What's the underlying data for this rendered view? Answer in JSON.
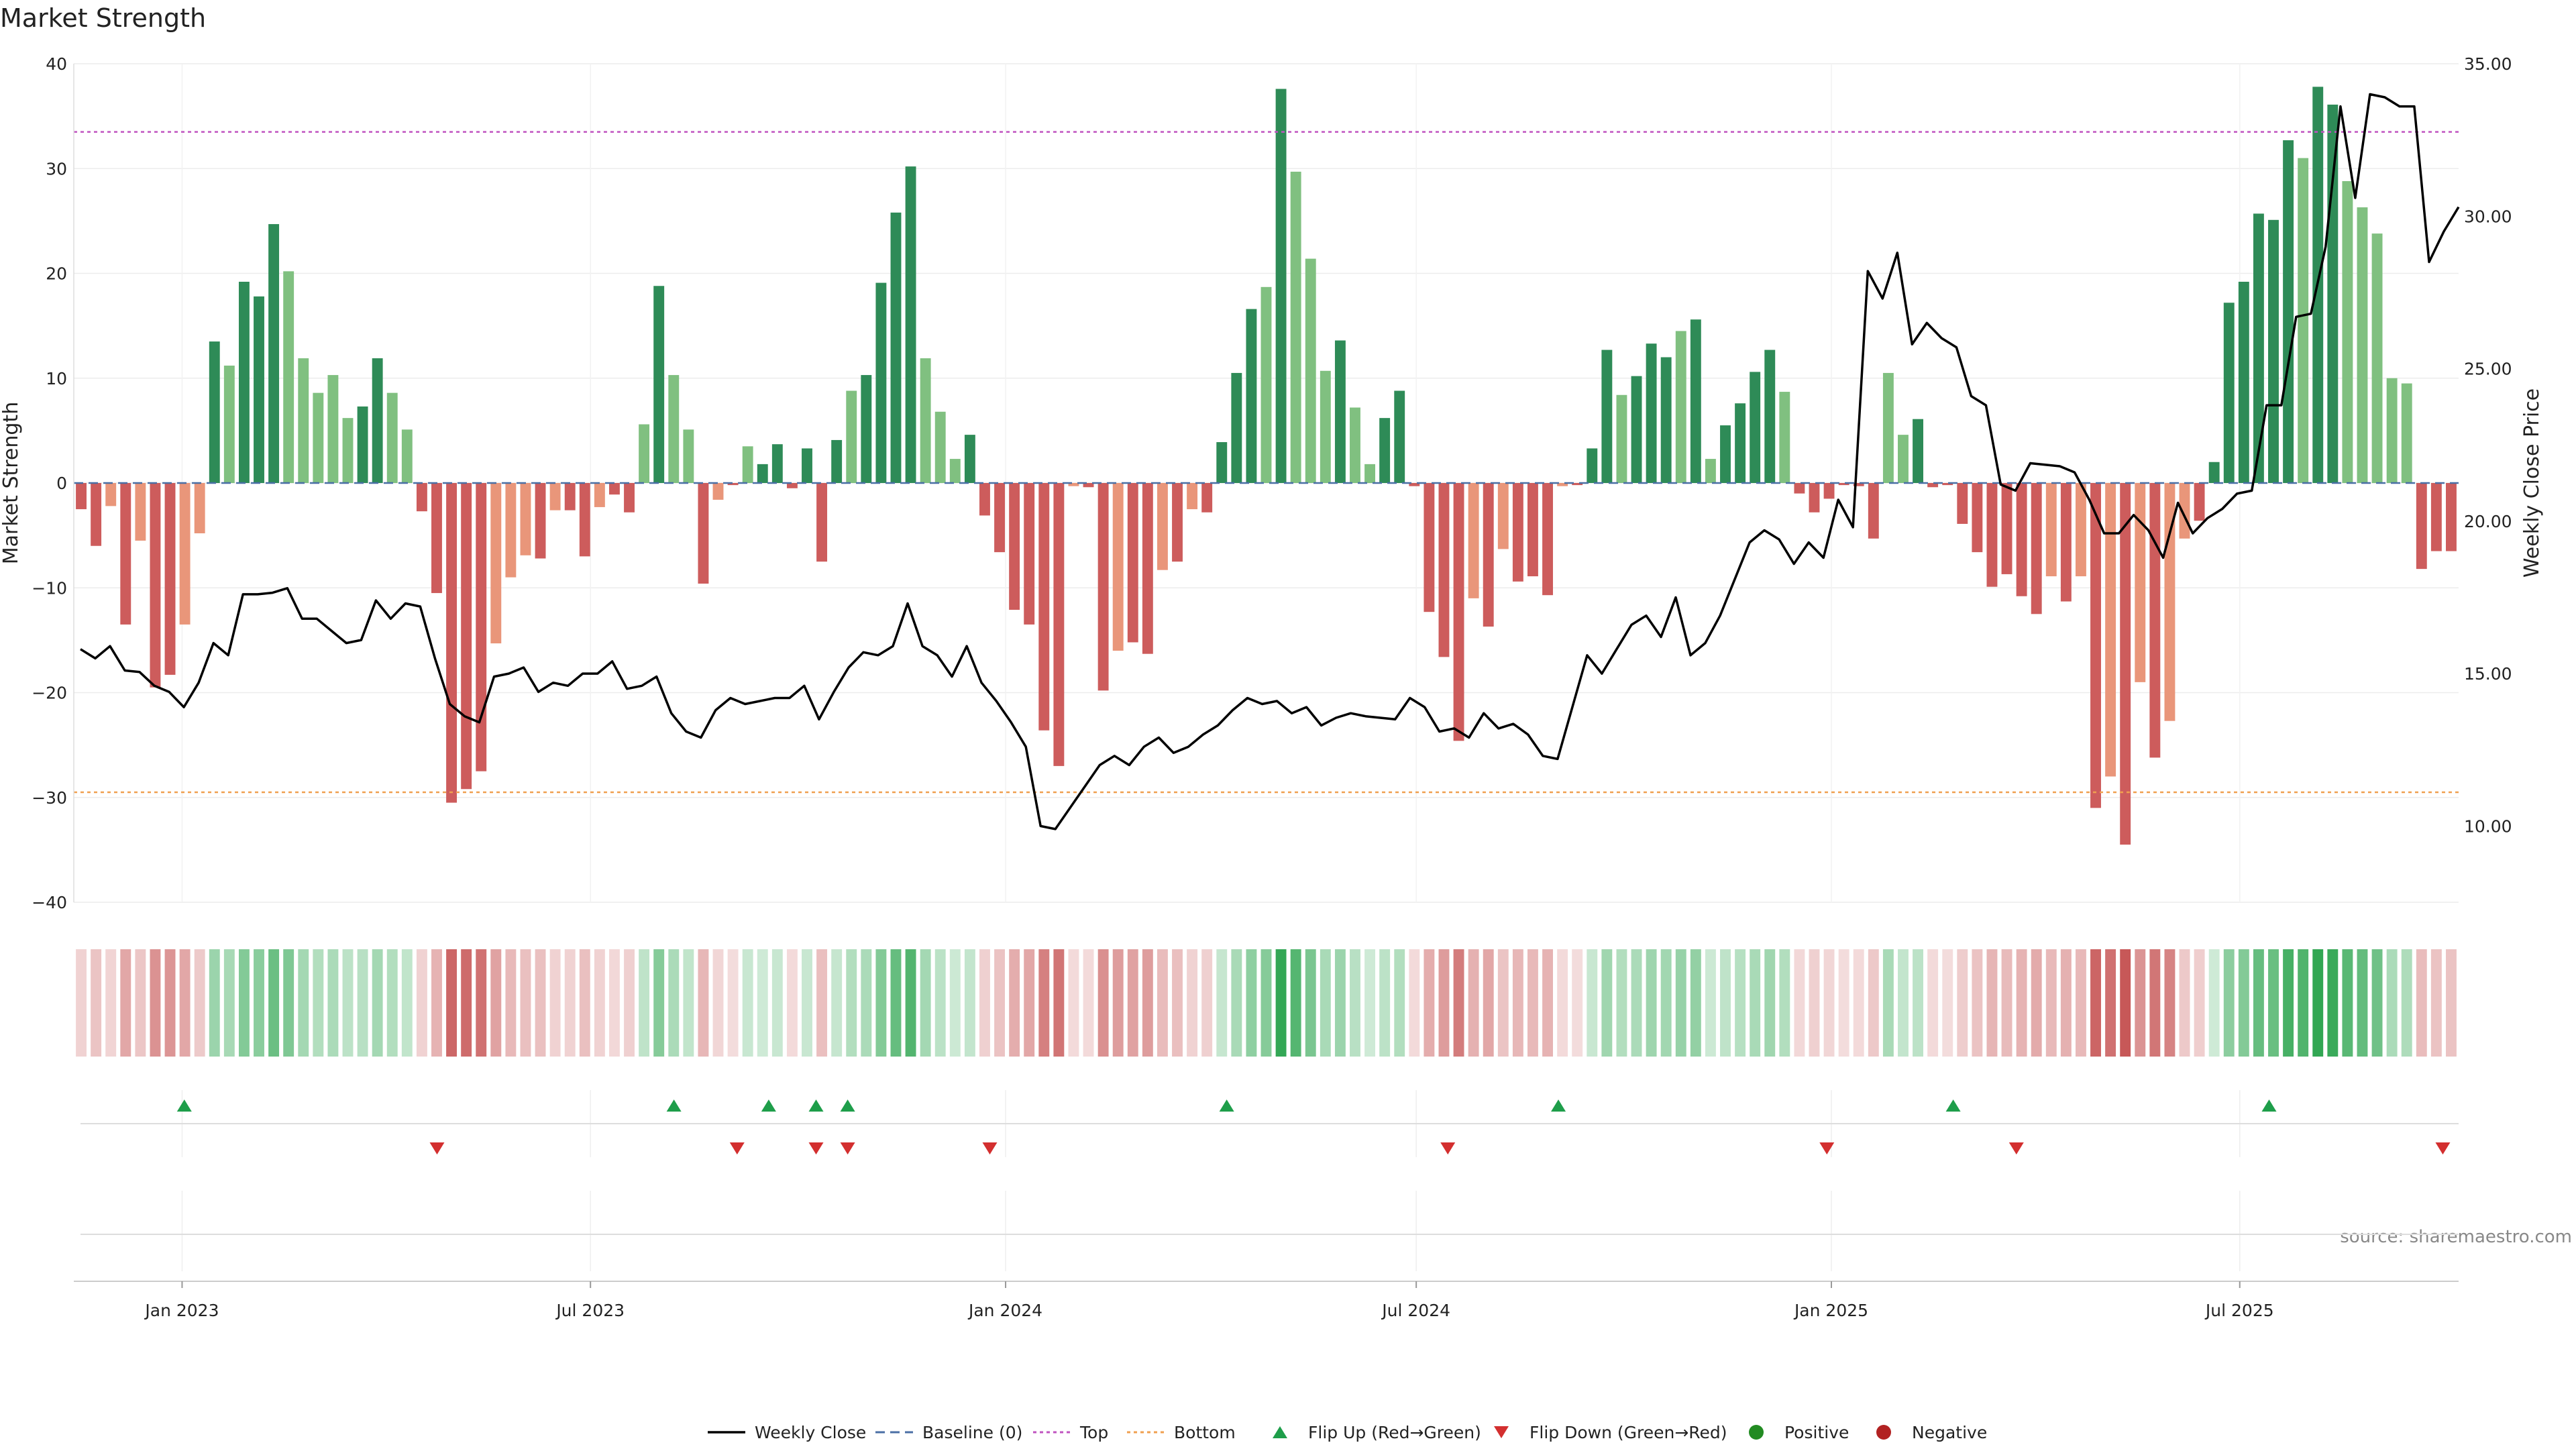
{
  "chart_data": {
    "type": "bar",
    "title": "Market Strength",
    "ylabel_left": "Market Strength",
    "ylabel_right": "Weekly Close Price",
    "source_text": "source: sharemaestro.com",
    "ylim_left": [
      -40,
      40
    ],
    "yticks_left": [
      40,
      30,
      20,
      10,
      0,
      -10,
      -20,
      -30,
      -40
    ],
    "ytick_labels_left": [
      "40",
      "30",
      "20",
      "10",
      "0",
      "−10",
      "−20",
      "−30",
      "−40"
    ],
    "ylim_right": [
      7.5,
      35.0
    ],
    "yticks_right": [
      35.0,
      30.0,
      25.0,
      20.0,
      15.0,
      10.0
    ],
    "ytick_labels_right": [
      "35.00",
      "30.00",
      "25.00",
      "20.00",
      "15.00",
      "10.00"
    ],
    "x_start_date": "2022-11-14",
    "x_end_date": "2025-10-06",
    "x_tick_dates": [
      "2023-01-01",
      "2023-07-01",
      "2024-01-01",
      "2024-07-01",
      "2025-01-01",
      "2025-07-01"
    ],
    "x_tick_labels": [
      "Jan 2023",
      "Jul 2023",
      "Jan 2024",
      "Jul 2024",
      "Jan 2025",
      "Jul 2025"
    ],
    "top_line": 33.5,
    "bottom_line": -29.5,
    "strength": [
      -2.5,
      -6,
      -2.2,
      -13.5,
      -5.5,
      -19.5,
      -18.3,
      -13.5,
      -4.8,
      13.5,
      11.2,
      19.2,
      17.8,
      24.7,
      20.2,
      11.9,
      8.6,
      10.3,
      6.2,
      7.3,
      11.9,
      8.6,
      5.1,
      -2.7,
      -10.5,
      -30.5,
      -29.2,
      -27.5,
      -15.3,
      -9,
      -6.9,
      -7.2,
      -2.6,
      -2.6,
      -7,
      -2.3,
      -1.1,
      -2.8,
      5.6,
      18.8,
      10.3,
      5.1,
      -9.6,
      -1.6,
      -0.2,
      3.5,
      1.8,
      3.7,
      -0.5,
      3.3,
      -7.5,
      4.1,
      8.8,
      10.3,
      19.1,
      25.8,
      30.2,
      11.9,
      6.8,
      2.3,
      4.6,
      -3.1,
      -6.6,
      -12.1,
      -13.5,
      -23.6,
      -27,
      -0.3,
      -0.4,
      -19.8,
      -16,
      -15.2,
      -16.3,
      -8.3,
      -7.5,
      -2.5,
      -2.8,
      3.9,
      10.5,
      16.6,
      18.7,
      37.6,
      29.7,
      21.4,
      10.7,
      13.6,
      7.2,
      1.8,
      6.2,
      8.8,
      -0.3,
      -12.3,
      -16.6,
      -24.6,
      -11,
      -13.7,
      -6.3,
      -9.4,
      -8.9,
      -10.7,
      -0.3,
      -0.2,
      3.3,
      12.7,
      8.4,
      10.2,
      13.3,
      12,
      14.5,
      15.6,
      2.3,
      5.5,
      7.6,
      10.6,
      12.7,
      8.7,
      -1,
      -2.8,
      -1.5,
      -0.2,
      -0.3,
      -5.3,
      10.5,
      4.6,
      6.1,
      -0.4,
      -0.2,
      -3.9,
      -6.6,
      -9.9,
      -8.7,
      -10.8,
      -12.5,
      -8.9,
      -11.3,
      -8.9,
      -31,
      -28,
      -34.5,
      -19,
      -26.2,
      -22.7,
      -5.3,
      -3.6,
      2,
      17.2,
      19.2,
      25.7,
      25.1,
      32.7,
      31,
      37.8,
      36.1,
      28.8,
      26.3,
      23.8,
      10,
      9.5,
      -8.2,
      -6.5,
      -6.5
    ],
    "series": [
      {
        "name": "Weekly Close",
        "values": [
          15.8,
          15.5,
          15.9,
          15.1,
          15.05,
          14.6,
          14.4,
          13.9,
          14.7,
          16,
          15.6,
          17.6,
          17.6,
          17.65,
          17.8,
          16.8,
          16.8,
          16.4,
          16,
          16.1,
          17.4,
          16.8,
          17.3,
          17.2,
          15.5,
          14,
          13.6,
          13.4,
          14.9,
          15,
          15.2,
          14.4,
          14.7,
          14.6,
          15,
          15,
          15.4,
          14.5,
          14.6,
          14.9,
          13.7,
          13.1,
          12.9,
          13.8,
          14.2,
          14,
          14.1,
          14.2,
          14.2,
          14.6,
          13.5,
          14.4,
          15.2,
          15.7,
          15.6,
          15.9,
          17.3,
          15.9,
          15.6,
          14.9,
          15.9,
          14.7,
          14.1,
          13.4,
          12.6,
          10,
          9.9,
          10.6,
          11.3,
          12,
          12.3,
          12,
          12.6,
          12.9,
          12.4,
          12.6,
          13,
          13.3,
          13.8,
          14.2,
          14,
          14.1,
          13.7,
          13.9,
          13.3,
          13.55,
          13.7,
          13.6,
          13.55,
          13.5,
          14.2,
          13.9,
          13.1,
          13.2,
          12.9,
          13.7,
          13.2,
          13.35,
          13,
          12.3,
          12.2,
          13.9,
          15.6,
          15,
          15.8,
          16.6,
          16.9,
          16.2,
          17.5,
          15.6,
          16,
          16.9,
          18.1,
          19.3,
          19.7,
          19.4,
          18.6,
          19.3,
          18.8,
          20.7,
          19.8,
          28.2,
          27.3,
          28.8,
          25.8,
          26.5,
          26,
          25.7,
          24.1,
          23.8,
          21.2,
          21,
          21.9,
          21.85,
          21.8,
          21.6,
          20.7,
          19.6,
          19.6,
          20.2,
          19.7,
          18.8,
          20.6,
          19.6,
          20.1,
          20.4,
          20.9,
          21,
          23.8,
          23.8,
          26.7,
          26.8,
          29,
          33.6,
          30.6,
          34,
          33.9,
          33.6,
          33.6,
          28.5,
          29.5,
          30.3
        ],
        "scale": "right"
      }
    ],
    "flips_up": [
      "2023-01-02",
      "2023-08-07",
      "2023-09-18",
      "2023-10-09",
      "2023-10-23",
      "2024-04-08",
      "2024-09-02",
      "2025-02-24",
      "2025-07-14"
    ],
    "flips_down": [
      "2023-04-24",
      "2023-09-04",
      "2023-10-09",
      "2023-10-23",
      "2023-12-25",
      "2024-07-15",
      "2024-12-30",
      "2025-03-24",
      "2025-09-29"
    ],
    "colors": {
      "green_dark": "#2e8b57",
      "green_light": "#80c080",
      "red_dark": "#cd5c5c",
      "red_light": "#e9967a",
      "baseline": "#4a6fa5",
      "top": "#c054c0",
      "bottom": "#f0a050",
      "line": "#000000",
      "flip_up": "#1e9e4a",
      "flip_down": "#d32f2f",
      "positive": "#228b22",
      "negative": "#b22222"
    },
    "legend": [
      {
        "label": "Weekly Close",
        "marker": "solid-line"
      },
      {
        "label": "Baseline (0)",
        "marker": "dash-line"
      },
      {
        "label": "Top",
        "marker": "dot-line-top"
      },
      {
        "label": "Bottom",
        "marker": "dot-line-bottom"
      },
      {
        "label": "Flip Up (Red→Green)",
        "marker": "triangle-up"
      },
      {
        "label": "Flip Down (Green→Red)",
        "marker": "triangle-down"
      },
      {
        "label": "Positive",
        "marker": "circle-positive"
      },
      {
        "label": "Negative",
        "marker": "circle-negative"
      }
    ],
    "legend_placement": "bottom-center",
    "grid": true
  }
}
